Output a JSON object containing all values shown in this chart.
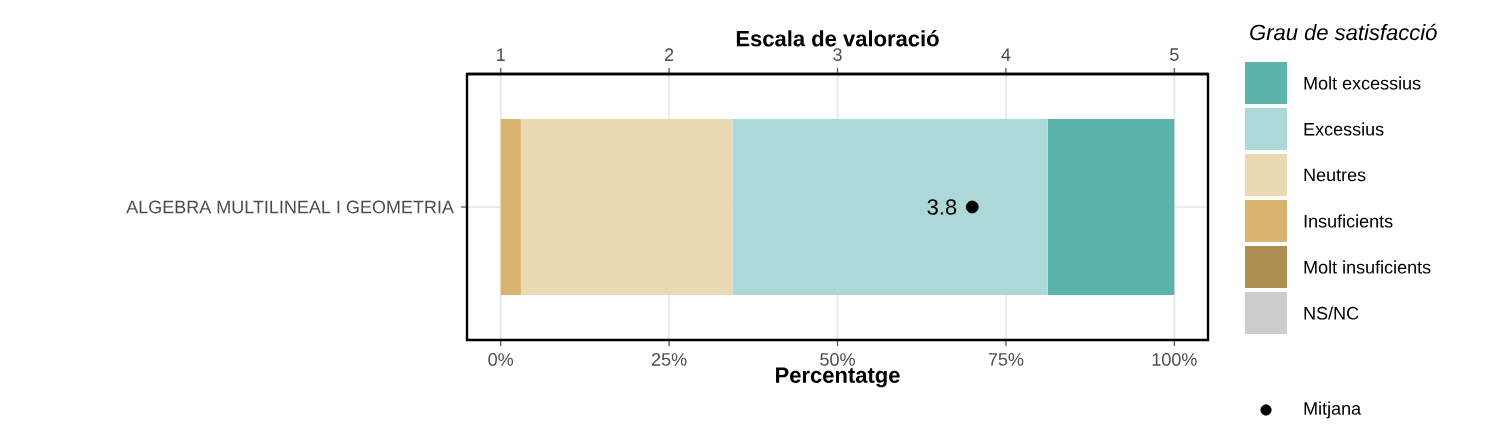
{
  "chart_data": {
    "type": "bar",
    "orientation": "horizontal",
    "stacked": true,
    "xlabel": "Percentatge",
    "x2label": "Escala de valoració",
    "legend_title": "Grau de satisfacció",
    "legend": "right",
    "grid": true,
    "categories": [
      "ALGEBRA MULTILINEAL I GEOMETRIA"
    ],
    "xlim": [
      -5,
      105
    ],
    "xticks": [
      {
        "value": 0,
        "label": "0%"
      },
      {
        "value": 25,
        "label": "25%"
      },
      {
        "value": 50,
        "label": "50%"
      },
      {
        "value": 75,
        "label": "75%"
      },
      {
        "value": 100,
        "label": "100%"
      }
    ],
    "x2lim": [
      0.8,
      5.2
    ],
    "x2ticks": [
      1,
      2,
      3,
      4,
      5
    ],
    "series": [
      {
        "name": "NS/NC",
        "color": "#cccccc",
        "values": [
          0
        ]
      },
      {
        "name": "Molt insuficients",
        "color": "#ae8e50",
        "values": [
          0
        ]
      },
      {
        "name": "Insuficients",
        "color": "#d8b46f",
        "values": [
          3.0
        ]
      },
      {
        "name": "Neutres",
        "color": "#ebd9b2",
        "values": [
          31.4
        ]
      },
      {
        "name": "Excessius",
        "color": "#acd9d7",
        "values": [
          46.8
        ]
      },
      {
        "name": "Molt excessius",
        "color": "#5ab4ac",
        "values": [
          18.8
        ]
      },
      {
        "name": "Mitjana",
        "type": "scatter",
        "axis": "x2",
        "marker": "circle",
        "color": "#000000",
        "values": [
          3.8
        ],
        "value_labels": [
          "3.8"
        ]
      }
    ]
  }
}
